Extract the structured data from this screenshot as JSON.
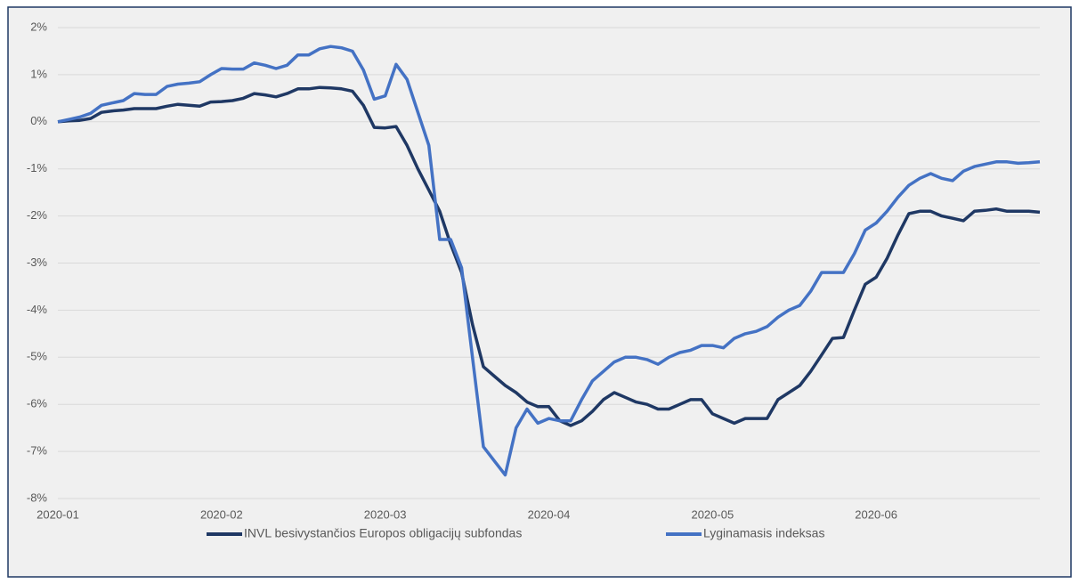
{
  "chart_data": {
    "type": "line",
    "categories": [
      "2020-01",
      null,
      null,
      null,
      null,
      null,
      null,
      null,
      null,
      null,
      null,
      null,
      null,
      null,
      null,
      "2020-02",
      null,
      null,
      null,
      null,
      null,
      null,
      null,
      null,
      null,
      null,
      null,
      null,
      null,
      null,
      "2020-03",
      null,
      null,
      null,
      null,
      null,
      null,
      null,
      null,
      null,
      null,
      null,
      null,
      null,
      null,
      "2020-04",
      null,
      null,
      null,
      null,
      null,
      null,
      null,
      null,
      null,
      null,
      null,
      null,
      null,
      null,
      "2020-05",
      null,
      null,
      null,
      null,
      null,
      null,
      null,
      null,
      null,
      null,
      null,
      null,
      null,
      null,
      "2020-06",
      null,
      null,
      null,
      null,
      null,
      null,
      null,
      null,
      null,
      null,
      null,
      null,
      null,
      null,
      null
    ],
    "series": [
      {
        "name": "INVL besivystančios Europos obligacijų subfondas",
        "color": "#1f3864",
        "values": [
          0,
          0.02,
          0.03,
          0.07,
          0.2,
          0.23,
          0.25,
          0.28,
          0.28,
          0.28,
          0.33,
          0.37,
          0.35,
          0.33,
          0.42,
          0.43,
          0.45,
          0.5,
          0.6,
          0.57,
          0.53,
          0.6,
          0.7,
          0.7,
          0.73,
          0.72,
          0.7,
          0.65,
          0.35,
          -0.12,
          -0.13,
          -0.1,
          -0.5,
          -1.0,
          -1.45,
          -1.9,
          -2.6,
          -3.2,
          -4.3,
          -5.2,
          -5.4,
          -5.6,
          -5.75,
          -5.95,
          -6.05,
          -6.05,
          -6.35,
          -6.45,
          -6.35,
          -6.15,
          -5.9,
          -5.75,
          -5.85,
          -5.95,
          -6.0,
          -6.1,
          -6.1,
          -6.0,
          -5.9,
          -5.9,
          -6.2,
          -6.3,
          -6.4,
          -6.3,
          -6.3,
          -6.3,
          -5.9,
          -5.75,
          -5.6,
          -5.3,
          -4.95,
          -4.6,
          -4.58,
          -4.0,
          -3.45,
          -3.3,
          -2.9,
          -2.4,
          -1.95,
          -1.9,
          -1.9,
          -2.0,
          -2.05,
          -2.1,
          -1.9,
          -1.88,
          -1.85,
          -1.9,
          -1.9,
          -1.9,
          -1.92
        ]
      },
      {
        "name": "Lyginamasis indeksas",
        "color": "#4472c4",
        "values": [
          0,
          0.05,
          0.1,
          0.18,
          0.35,
          0.4,
          0.45,
          0.6,
          0.58,
          0.58,
          0.75,
          0.8,
          0.82,
          0.85,
          1.0,
          1.13,
          1.12,
          1.12,
          1.25,
          1.2,
          1.13,
          1.2,
          1.42,
          1.42,
          1.55,
          1.6,
          1.57,
          1.5,
          1.1,
          0.48,
          0.55,
          1.22,
          0.9,
          0.2,
          -0.5,
          -2.5,
          -2.5,
          -3.1,
          -5.0,
          -6.9,
          -7.2,
          -7.5,
          -6.5,
          -6.1,
          -6.4,
          -6.3,
          -6.35,
          -6.35,
          -5.9,
          -5.5,
          -5.3,
          -5.1,
          -5.0,
          -5.0,
          -5.05,
          -5.15,
          -5.0,
          -4.9,
          -4.85,
          -4.75,
          -4.75,
          -4.8,
          -4.6,
          -4.5,
          -4.45,
          -4.35,
          -4.15,
          -4.0,
          -3.9,
          -3.6,
          -3.2,
          -3.2,
          -3.2,
          -2.8,
          -2.3,
          -2.15,
          -1.9,
          -1.6,
          -1.35,
          -1.2,
          -1.1,
          -1.2,
          -1.25,
          -1.05,
          -0.95,
          -0.9,
          -0.85,
          -0.85,
          -0.88,
          -0.87,
          -0.85
        ]
      }
    ],
    "ylim": [
      -8,
      2
    ],
    "yticks": [
      {
        "value": -8,
        "label": "-8%"
      },
      {
        "value": -7,
        "label": "-7%"
      },
      {
        "value": -6,
        "label": "-6%"
      },
      {
        "value": -5,
        "label": "-5%"
      },
      {
        "value": -4,
        "label": "-4%"
      },
      {
        "value": -3,
        "label": "-3%"
      },
      {
        "value": -2,
        "label": "-2%"
      },
      {
        "value": -1,
        "label": "-1%"
      },
      {
        "value": 0,
        "label": "0%"
      },
      {
        "value": 1,
        "label": "1%"
      },
      {
        "value": 2,
        "label": "2%"
      }
    ],
    "grid": true,
    "legend": "bottom"
  }
}
